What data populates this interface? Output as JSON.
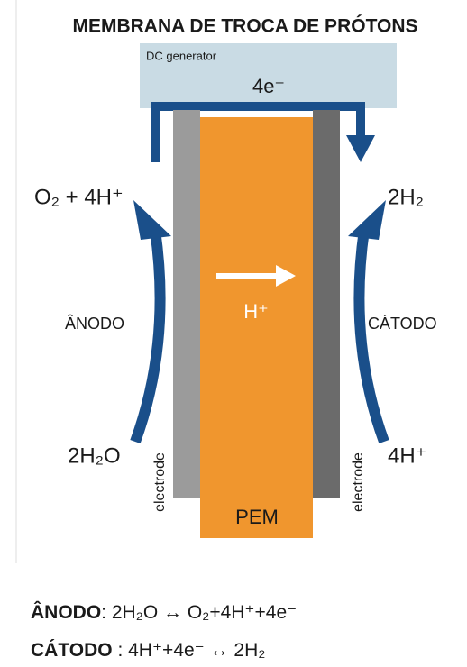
{
  "title": "MEMBRANA DE TROCA DE PRÓTONS",
  "generator": {
    "label": "DC generator",
    "electrons": "4e⁻"
  },
  "anode": {
    "label": "ÂNODO",
    "output": "O₂ + 4H⁺",
    "input": "2H₂O",
    "electrode": "electrode"
  },
  "cathode": {
    "label": "CÁTODO",
    "output": "2H₂",
    "input": "4H⁺",
    "electrode": "electrode"
  },
  "membrane": {
    "label": "PEM",
    "ion": "H⁺"
  },
  "equations": [
    {
      "label": "ÂNODO",
      "text": ": 2H₂O ↔ O₂+4H⁺+4e⁻"
    },
    {
      "label": "CÁTODO",
      "text": " : 4H⁺+4e⁻ ↔ 2H₂"
    }
  ]
}
